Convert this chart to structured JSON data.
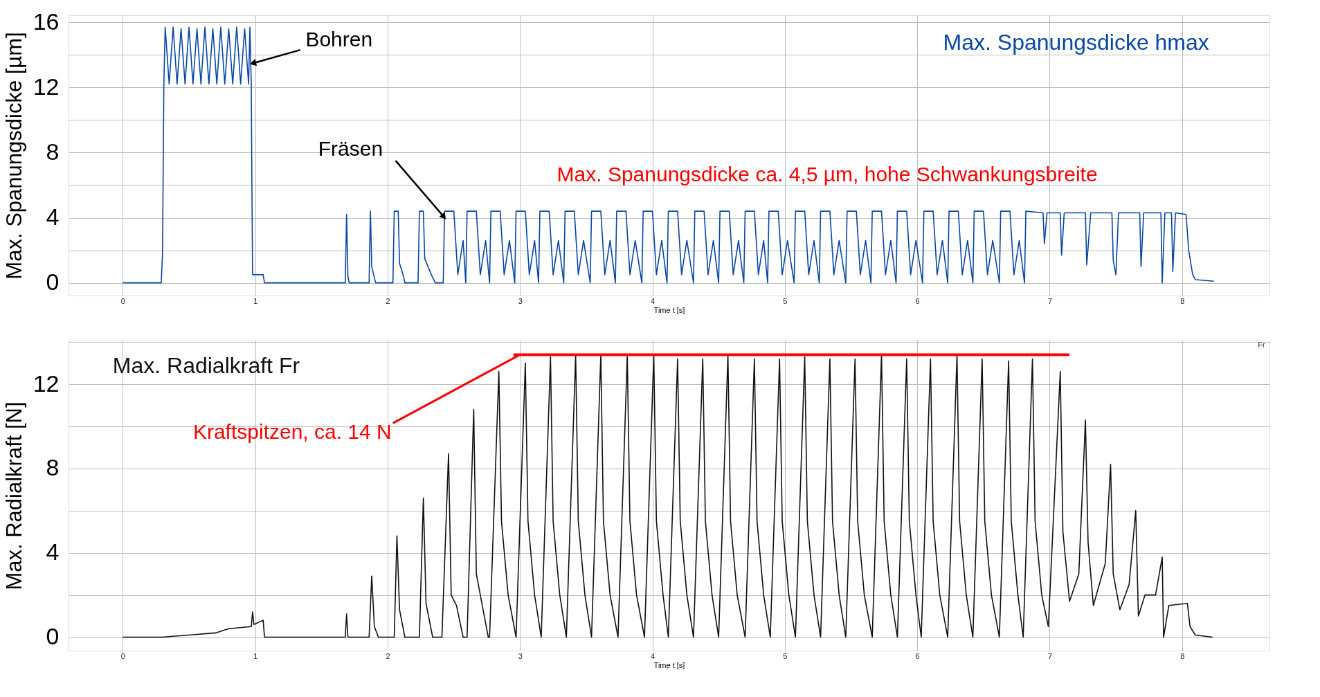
{
  "chart_data": [
    {
      "type": "line",
      "xlabel": "Time t [s]",
      "ylabel": "Max. Spanungsdicke [µm]",
      "xlim": [
        -0.41,
        8.66
      ],
      "xticks": [
        0,
        1,
        2,
        3,
        4,
        5,
        6,
        7,
        8
      ],
      "ylim": [
        -0.78,
        16.43
      ],
      "yticks": [
        0,
        {
          "value": 2,
          "label": null
        },
        4,
        {
          "value": 6,
          "label": null
        },
        8,
        {
          "value": 10,
          "label": null
        },
        12,
        {
          "value": 14,
          "label": null
        },
        16
      ],
      "grid": true,
      "series": [
        {
          "name": "Max. Spanungsdicke hmax",
          "color": "#0747a6",
          "x": [
            0,
            0.29,
            0.3,
            0.31,
            0.32,
            0.35,
            0.38,
            0.41,
            0.44,
            0.47,
            0.5,
            0.53,
            0.56,
            0.59,
            0.62,
            0.65,
            0.68,
            0.71,
            0.74,
            0.77,
            0.8,
            0.83,
            0.86,
            0.89,
            0.92,
            0.95,
            0.96,
            0.97,
            0.975,
            0.98,
            1.06,
            1.07,
            1.68,
            1.69,
            1.7,
            1.71,
            1.86,
            1.87,
            1.88,
            1.9,
            1.91,
            2.04,
            2.05,
            2.08,
            2.09,
            2.12,
            2.13,
            2.23,
            2.24,
            2.27,
            2.28,
            2.33,
            2.36,
            2.41,
            2.42,
            2.43,
            2.5,
            2.53,
            2.57,
            2.59,
            2.6,
            2.67,
            2.7,
            2.74,
            2.77,
            2.78,
            2.85,
            2.88,
            2.92,
            2.96,
            2.97,
            3.04,
            3.07,
            3.11,
            3.14,
            3.15,
            3.22,
            3.25,
            3.29,
            3.33,
            3.34,
            3.41,
            3.44,
            3.48,
            3.53,
            3.54,
            3.61,
            3.64,
            3.68,
            3.72,
            3.73,
            3.8,
            3.83,
            3.87,
            3.92,
            3.93,
            4.0,
            4.03,
            4.07,
            4.11,
            4.12,
            4.19,
            4.22,
            4.26,
            4.31,
            4.32,
            4.39,
            4.42,
            4.46,
            4.5,
            4.51,
            4.58,
            4.61,
            4.65,
            4.69,
            4.7,
            4.77,
            4.8,
            4.84,
            4.87,
            4.88,
            4.95,
            4.98,
            5.02,
            5.07,
            5.08,
            5.15,
            5.18,
            5.22,
            5.26,
            5.27,
            5.34,
            5.37,
            5.41,
            5.46,
            5.47,
            5.54,
            5.57,
            5.61,
            5.65,
            5.66,
            5.73,
            5.76,
            5.8,
            5.84,
            5.85,
            5.92,
            5.95,
            5.99,
            6.04,
            6.05,
            6.12,
            6.15,
            6.19,
            6.23,
            6.24,
            6.31,
            6.34,
            6.38,
            6.42,
            6.43,
            6.5,
            6.53,
            6.57,
            6.62,
            6.63,
            6.7,
            6.73,
            6.77,
            6.81,
            6.82,
            6.95,
            6.96,
            6.98,
            7.08,
            7.09,
            7.11,
            7.27,
            7.28,
            7.31,
            7.47,
            7.48,
            7.5,
            7.52,
            7.68,
            7.69,
            7.71,
            7.84,
            7.85,
            7.87,
            7.92,
            7.93,
            7.95,
            8.03,
            8.05,
            8.08,
            8.1,
            8.24
          ],
          "values": [
            0,
            0,
            1.8,
            12.2,
            15.7,
            12.2,
            15.7,
            12.2,
            15.6,
            12.2,
            15.7,
            12.2,
            15.6,
            12.2,
            15.7,
            12.2,
            15.6,
            12.2,
            15.7,
            12.2,
            15.6,
            12.2,
            15.7,
            12.2,
            15.6,
            12.2,
            15.7,
            12.2,
            6.0,
            0.5,
            0.5,
            0,
            0,
            4.2,
            0.4,
            0,
            0,
            4.4,
            1.0,
            0.3,
            0,
            0,
            4.4,
            4.4,
            1.2,
            0.4,
            0,
            0,
            4.4,
            4.4,
            1.5,
            0.5,
            0,
            0,
            0,
            4.4,
            4.4,
            0.5,
            2.6,
            0,
            4.4,
            4.4,
            0.5,
            2.6,
            0,
            4.4,
            4.4,
            0.5,
            2.6,
            0,
            4.4,
            4.4,
            0.5,
            2.6,
            0,
            4.4,
            4.4,
            0.5,
            2.6,
            0,
            4.4,
            4.4,
            0.5,
            2.6,
            0,
            4.4,
            4.4,
            0.5,
            2.6,
            0,
            4.4,
            4.4,
            0.5,
            2.6,
            0,
            4.4,
            4.4,
            0.5,
            2.6,
            0,
            4.4,
            4.4,
            0.5,
            2.6,
            0,
            4.4,
            4.4,
            0.5,
            2.6,
            0,
            4.4,
            4.4,
            0.5,
            2.6,
            0,
            4.4,
            4.4,
            0.5,
            2.6,
            0,
            4.4,
            4.4,
            0.5,
            2.6,
            0,
            4.4,
            4.4,
            0.5,
            2.6,
            0,
            4.4,
            4.4,
            0.5,
            2.6,
            0,
            4.4,
            4.4,
            0.5,
            2.6,
            0,
            4.4,
            4.4,
            0.5,
            2.6,
            0,
            4.4,
            4.4,
            0.5,
            2.6,
            0,
            4.4,
            4.4,
            0.5,
            2.6,
            0,
            4.4,
            4.4,
            0.5,
            2.6,
            0,
            4.4,
            4.4,
            0.5,
            2.6,
            0,
            4.4,
            4.4,
            0.5,
            2.6,
            0,
            4.4,
            4.3,
            2.4,
            4.3,
            4.3,
            1.7,
            4.3,
            4.3,
            1.1,
            4.3,
            4.3,
            1.4,
            0.5,
            4.3,
            4.3,
            1.0,
            4.3,
            4.3,
            0,
            4.3,
            4.3,
            0.7,
            4.3,
            4.2,
            2.0,
            0.5,
            0.2,
            0.1
          ]
        }
      ],
      "annotations": [
        {
          "text": "Bohren",
          "x": 0.99,
          "y": 13.5
        },
        {
          "text": "Fräsen",
          "x": 2.42,
          "y": 4.1
        },
        "Max. Spanungsdicke ca. 4,5 µm, hohe Schwankungsbreite"
      ]
    },
    {
      "type": "line",
      "xlabel": "Time t [s]",
      "ylabel": "Max. Radialkraft [N]",
      "xlim": [
        -0.41,
        8.66
      ],
      "xticks": [
        0,
        1,
        2,
        3,
        4,
        5,
        6,
        7,
        8
      ],
      "ylim": [
        -0.64,
        14.07
      ],
      "yticks": [
        0,
        {
          "value": 2,
          "label": null
        },
        4,
        {
          "value": 6,
          "label": null
        },
        8,
        {
          "value": 10,
          "label": null
        },
        12,
        {
          "value": 14,
          "label": null
        }
      ],
      "grid": true,
      "series": [
        {
          "name": "Max. Radialkraft Fr",
          "color": "#111111",
          "x": [
            0,
            0.3,
            0.5,
            0.7,
            0.8,
            0.97,
            0.98,
            0.99,
            1.06,
            1.07,
            1.68,
            1.69,
            1.7,
            1.86,
            1.88,
            1.9,
            1.93,
            2.05,
            2.07,
            2.09,
            2.13,
            2.24,
            2.27,
            2.29,
            2.34,
            2.41,
            2.46,
            2.48,
            2.52,
            2.57,
            2.6,
            2.65,
            2.67,
            2.7,
            2.76,
            2.77,
            2.84,
            2.86,
            2.91,
            2.97,
            3.04,
            3.06,
            3.11,
            3.16,
            3.23,
            3.25,
            3.3,
            3.35,
            3.42,
            3.44,
            3.49,
            3.54,
            3.61,
            3.63,
            3.68,
            3.74,
            3.81,
            3.83,
            3.88,
            3.94,
            4.01,
            4.03,
            4.08,
            4.12,
            4.19,
            4.21,
            4.26,
            4.31,
            4.38,
            4.4,
            4.45,
            4.5,
            4.57,
            4.59,
            4.64,
            4.7,
            4.77,
            4.79,
            4.84,
            4.89,
            4.96,
            4.98,
            5.03,
            5.08,
            5.15,
            5.17,
            5.22,
            5.27,
            5.34,
            5.36,
            5.41,
            5.46,
            5.53,
            5.55,
            5.6,
            5.66,
            5.73,
            5.75,
            5.8,
            5.85,
            5.92,
            5.94,
            5.99,
            6.03,
            6.1,
            6.12,
            6.17,
            6.23,
            6.3,
            6.32,
            6.37,
            6.42,
            6.49,
            6.51,
            6.56,
            6.62,
            6.69,
            6.71,
            6.76,
            6.8,
            6.87,
            6.89,
            6.94,
            6.99,
            7.08,
            7.1,
            7.15,
            7.22,
            7.27,
            7.29,
            7.33,
            7.42,
            7.46,
            7.48,
            7.53,
            7.6,
            7.65,
            7.67,
            7.72,
            7.8,
            7.85,
            7.86,
            7.9,
            8.04,
            8.06,
            8.1,
            8.23
          ],
          "values": [
            0,
            0,
            0.1,
            0.2,
            0.4,
            0.5,
            1.2,
            0.6,
            0.8,
            0,
            0,
            1.1,
            0,
            0,
            2.9,
            0.5,
            0,
            0,
            4.8,
            1.3,
            0,
            0,
            6.6,
            1.6,
            0,
            0,
            8.7,
            2.0,
            1.5,
            0,
            0,
            10.8,
            3.0,
            2.0,
            0,
            0,
            12.6,
            5.5,
            2,
            0,
            13.0,
            5.5,
            2,
            0,
            13.3,
            5.5,
            2,
            0,
            13.4,
            5.5,
            2,
            0,
            13.4,
            5.5,
            2,
            0,
            13.4,
            5.5,
            2,
            0,
            13.4,
            5.5,
            2,
            0,
            13.2,
            5.5,
            2,
            0,
            13.2,
            5.5,
            2,
            0,
            13.4,
            5.5,
            2,
            0,
            13.2,
            5.5,
            2,
            0,
            13.2,
            5.5,
            2,
            0,
            13.3,
            5.5,
            2,
            0,
            13.2,
            5.5,
            2,
            0,
            13.2,
            5.5,
            2,
            0,
            13.4,
            5.5,
            2,
            0,
            13.2,
            5.5,
            2,
            0,
            13.2,
            5.5,
            2,
            0,
            13.4,
            5.5,
            2,
            0,
            13.2,
            5.5,
            2,
            0,
            13.1,
            5.5,
            2,
            0,
            13.2,
            5.5,
            2,
            0.5,
            12.6,
            5.0,
            1.7,
            3.0,
            10.3,
            4.5,
            1.5,
            3.5,
            8.2,
            3.0,
            1.3,
            2.5,
            6.0,
            1.0,
            2.0,
            2.0,
            3.8,
            0,
            1.5,
            1.6,
            0.5,
            0.1,
            0
          ]
        },
        {
          "color": "#ff0000",
          "x": [
            2.95,
            7.15
          ],
          "values": [
            13.4,
            13.4
          ]
        }
      ],
      "annotations": [
        {
          "text": "Kraftspitzen, ca. 14 N",
          "x": 3.0,
          "y": 13.4
        },
        "Fr"
      ]
    }
  ]
}
